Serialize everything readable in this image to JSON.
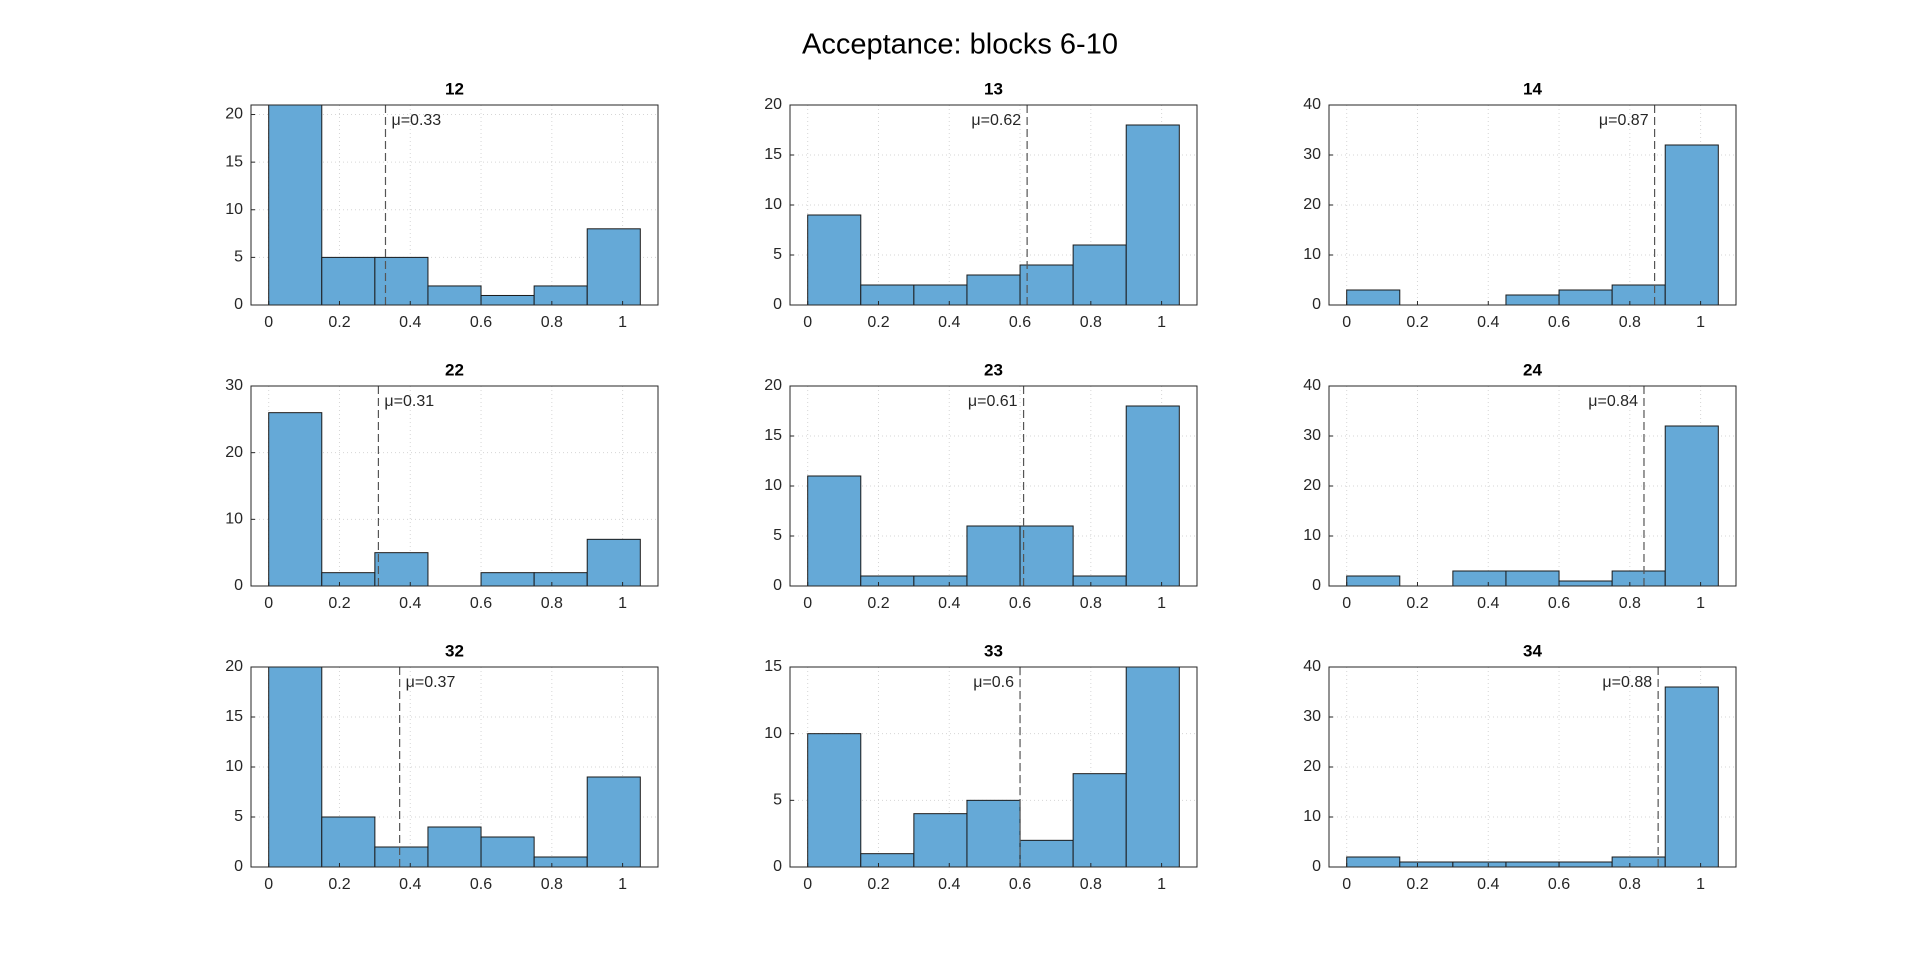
{
  "title": "Acceptance: blocks 6-10",
  "chart_data": [
    {
      "type": "histogram",
      "title": "12",
      "bins": [
        0,
        0.15,
        0.3,
        0.45,
        0.6,
        0.75,
        0.9,
        1.05
      ],
      "values": [
        21,
        5,
        5,
        2,
        1,
        2,
        8
      ],
      "color": "#65a9d7",
      "xlim": [
        -0.05,
        1.1
      ],
      "xticks": [
        0,
        0.2,
        0.4,
        0.6,
        0.8,
        1
      ],
      "ylim": [
        0,
        21
      ],
      "yticks": [
        0,
        5,
        10,
        15,
        20
      ],
      "grid": true,
      "mean": {
        "value": 0.33,
        "label": "μ=0.33"
      }
    },
    {
      "type": "histogram",
      "title": "13",
      "bins": [
        0,
        0.15,
        0.3,
        0.45,
        0.6,
        0.75,
        0.9,
        1.05
      ],
      "values": [
        9,
        2,
        2,
        3,
        4,
        6,
        18
      ],
      "color": "#65a9d7",
      "xlim": [
        -0.05,
        1.1
      ],
      "xticks": [
        0,
        0.2,
        0.4,
        0.6,
        0.8,
        1
      ],
      "ylim": [
        0,
        20
      ],
      "yticks": [
        0,
        5,
        10,
        15,
        20
      ],
      "grid": true,
      "mean": {
        "value": 0.62,
        "label": "μ=0.62"
      }
    },
    {
      "type": "histogram",
      "title": "14",
      "bins": [
        0,
        0.15,
        0.3,
        0.45,
        0.6,
        0.75,
        0.9,
        1.05
      ],
      "values": [
        3,
        0,
        0,
        2,
        3,
        4,
        32
      ],
      "color": "#65a9d7",
      "xlim": [
        -0.05,
        1.1
      ],
      "xticks": [
        0,
        0.2,
        0.4,
        0.6,
        0.8,
        1
      ],
      "ylim": [
        0,
        40
      ],
      "yticks": [
        0,
        10,
        20,
        30,
        40
      ],
      "grid": true,
      "mean": {
        "value": 0.87,
        "label": "μ=0.87"
      }
    },
    {
      "type": "histogram",
      "title": "22",
      "bins": [
        0,
        0.15,
        0.3,
        0.45,
        0.6,
        0.75,
        0.9,
        1.05
      ],
      "values": [
        26,
        2,
        5,
        0,
        2,
        2,
        7
      ],
      "color": "#65a9d7",
      "xlim": [
        -0.05,
        1.1
      ],
      "xticks": [
        0,
        0.2,
        0.4,
        0.6,
        0.8,
        1
      ],
      "ylim": [
        0,
        30
      ],
      "yticks": [
        0,
        10,
        20,
        30
      ],
      "grid": true,
      "mean": {
        "value": 0.31,
        "label": "μ=0.31"
      }
    },
    {
      "type": "histogram",
      "title": "23",
      "bins": [
        0,
        0.15,
        0.3,
        0.45,
        0.6,
        0.75,
        0.9,
        1.05
      ],
      "values": [
        11,
        1,
        1,
        6,
        6,
        1,
        18
      ],
      "color": "#65a9d7",
      "xlim": [
        -0.05,
        1.1
      ],
      "xticks": [
        0,
        0.2,
        0.4,
        0.6,
        0.8,
        1
      ],
      "ylim": [
        0,
        20
      ],
      "yticks": [
        0,
        5,
        10,
        15,
        20
      ],
      "grid": true,
      "mean": {
        "value": 0.61,
        "label": "μ=0.61"
      }
    },
    {
      "type": "histogram",
      "title": "24",
      "bins": [
        0,
        0.15,
        0.3,
        0.45,
        0.6,
        0.75,
        0.9,
        1.05
      ],
      "values": [
        2,
        0,
        3,
        3,
        1,
        3,
        32
      ],
      "color": "#65a9d7",
      "xlim": [
        -0.05,
        1.1
      ],
      "xticks": [
        0,
        0.2,
        0.4,
        0.6,
        0.8,
        1
      ],
      "ylim": [
        0,
        40
      ],
      "yticks": [
        0,
        10,
        20,
        30,
        40
      ],
      "grid": true,
      "mean": {
        "value": 0.84,
        "label": "μ=0.84"
      }
    },
    {
      "type": "histogram",
      "title": "32",
      "bins": [
        0,
        0.15,
        0.3,
        0.45,
        0.6,
        0.75,
        0.9,
        1.05
      ],
      "values": [
        20,
        5,
        2,
        4,
        3,
        1,
        9
      ],
      "color": "#65a9d7",
      "xlim": [
        -0.05,
        1.1
      ],
      "xticks": [
        0,
        0.2,
        0.4,
        0.6,
        0.8,
        1
      ],
      "ylim": [
        0,
        20
      ],
      "yticks": [
        0,
        5,
        10,
        15,
        20
      ],
      "grid": true,
      "mean": {
        "value": 0.37,
        "label": "μ=0.37"
      }
    },
    {
      "type": "histogram",
      "title": "33",
      "bins": [
        0,
        0.15,
        0.3,
        0.45,
        0.6,
        0.75,
        0.9,
        1.05
      ],
      "values": [
        10,
        1,
        4,
        5,
        2,
        7,
        15
      ],
      "color": "#65a9d7",
      "xlim": [
        -0.05,
        1.1
      ],
      "xticks": [
        0,
        0.2,
        0.4,
        0.6,
        0.8,
        1
      ],
      "ylim": [
        0,
        15
      ],
      "yticks": [
        0,
        5,
        10,
        15
      ],
      "grid": true,
      "mean": {
        "value": 0.6,
        "label": "μ=0.6"
      }
    },
    {
      "type": "histogram",
      "title": "34",
      "bins": [
        0,
        0.15,
        0.3,
        0.45,
        0.6,
        0.75,
        0.9,
        1.05
      ],
      "values": [
        2,
        1,
        1,
        1,
        1,
        2,
        36
      ],
      "color": "#65a9d7",
      "xlim": [
        -0.05,
        1.1
      ],
      "xticks": [
        0,
        0.2,
        0.4,
        0.6,
        0.8,
        1
      ],
      "ylim": [
        0,
        40
      ],
      "yticks": [
        0,
        10,
        20,
        30,
        40
      ],
      "grid": true,
      "mean": {
        "value": 0.88,
        "label": "μ=0.88"
      }
    }
  ]
}
